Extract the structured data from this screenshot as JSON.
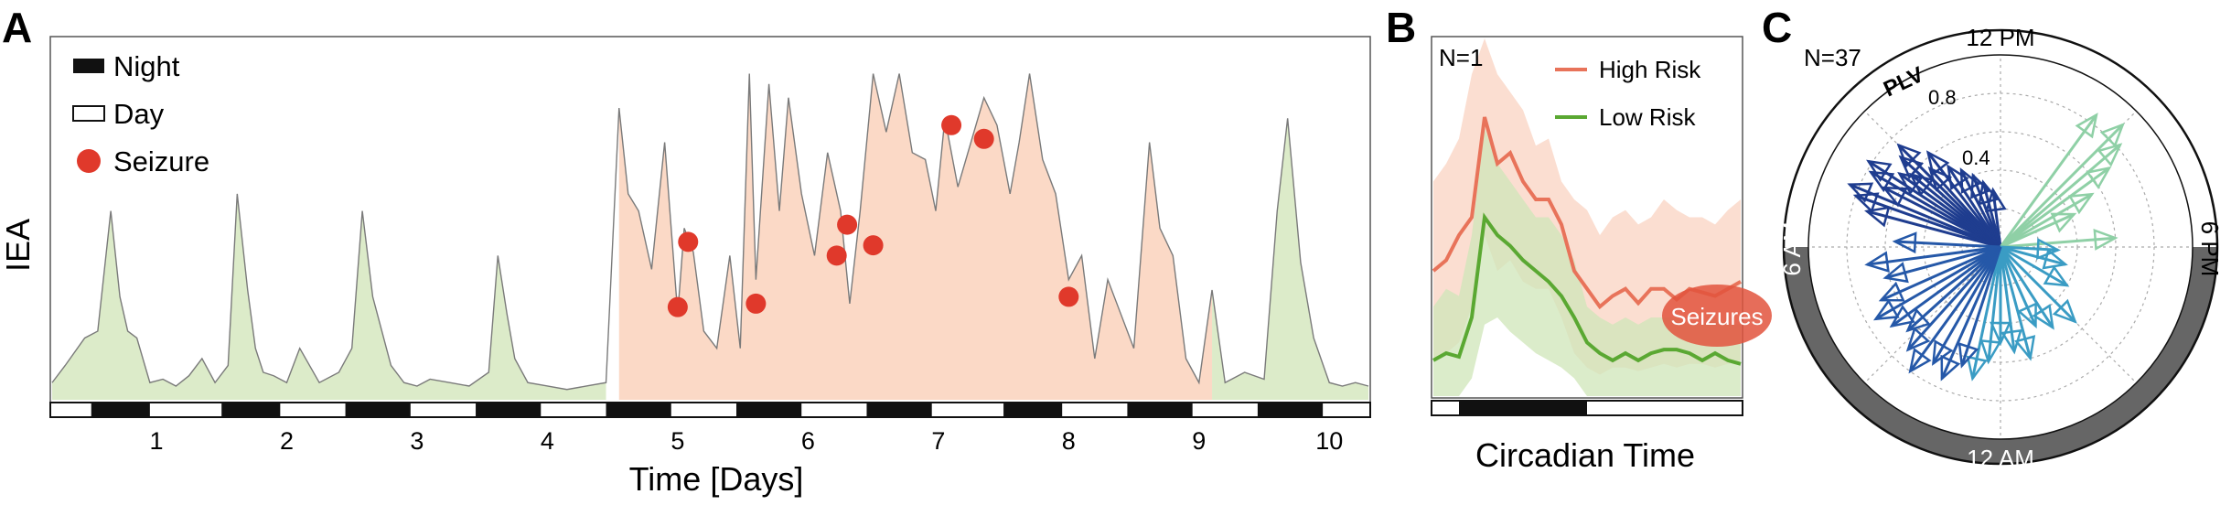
{
  "panels": {
    "A": {
      "letter": "A",
      "ylabel": "IEA",
      "xlabel": "Time [Days]",
      "legend": {
        "night": "Night",
        "day": "Day",
        "seizure": "Seizure"
      },
      "colors": {
        "low": "#dcebc9",
        "high": "#fbd9c6",
        "line": "#7a7a7a",
        "seizure": "#e0392b",
        "night": "#111111",
        "day": "#ffffff"
      }
    },
    "B": {
      "letter": "B",
      "n_label": "N=1",
      "xlabel": "Circadian Time",
      "legend": {
        "high": "High Risk",
        "low": "Low Risk"
      },
      "seizure_label": "Seizures",
      "colors": {
        "high_line": "#e8735a",
        "high_band": "#f9d3c1",
        "low_line": "#5aa832",
        "low_band": "#cfe6b8",
        "seizure_blob": "#e2533d"
      }
    },
    "C": {
      "letter": "C",
      "n_label": "N=37",
      "plv_label": "PLV",
      "ring_labels": {
        "top": "12 PM",
        "right": "6 PM",
        "bottom": "12 AM",
        "left": "6 AM"
      },
      "radial_ticks": [
        "0.4",
        "0.8"
      ],
      "colors": {
        "ring_dark": "#666666",
        "night_arrows": "#1f3d8f",
        "evening_arrows": "#8fd0a6",
        "midnight_arrows": "#2b7fb8"
      }
    }
  },
  "chart_data": [
    {
      "panel": "A",
      "type": "area",
      "title": "",
      "xlabel": "Time [Days]",
      "ylabel": "IEA",
      "xlim": [
        0.2,
        10.3
      ],
      "ylim": [
        0,
        1
      ],
      "xticks": [
        "1",
        "2",
        "3",
        "4",
        "5",
        "6",
        "7",
        "8",
        "9",
        "10"
      ],
      "grid": false,
      "legend_position": "top-left",
      "series": [
        {
          "name": "IEA",
          "x": [
            0.2,
            0.3,
            0.45,
            0.55,
            0.65,
            0.72,
            0.78,
            0.85,
            0.95,
            1.05,
            1.15,
            1.25,
            1.35,
            1.45,
            1.55,
            1.62,
            1.7,
            1.76,
            1.82,
            1.9,
            2.0,
            2.1,
            2.25,
            2.4,
            2.5,
            2.58,
            2.66,
            2.73,
            2.8,
            2.9,
            3.0,
            3.1,
            3.25,
            3.4,
            3.55,
            3.62,
            3.69,
            3.75,
            3.85,
            4.0,
            4.15,
            4.3,
            4.45,
            4.55,
            4.62,
            4.7,
            4.8,
            4.9,
            5.0,
            5.05,
            5.12,
            5.2,
            5.3,
            5.4,
            5.48,
            5.55,
            5.6,
            5.7,
            5.78,
            5.85,
            5.95,
            6.05,
            6.15,
            6.25,
            6.32,
            6.4,
            6.5,
            6.6,
            6.7,
            6.8,
            6.9,
            6.98,
            7.05,
            7.15,
            7.25,
            7.35,
            7.45,
            7.55,
            7.62,
            7.7,
            7.8,
            7.9,
            8.0,
            8.1,
            8.2,
            8.3,
            8.4,
            8.5,
            8.62,
            8.7,
            8.8,
            8.9,
            9.0,
            9.1,
            9.2,
            9.35,
            9.5,
            9.6,
            9.68,
            9.78,
            9.88,
            10.0,
            10.1,
            10.2,
            10.3
          ],
          "y": [
            0.05,
            0.1,
            0.18,
            0.2,
            0.55,
            0.3,
            0.2,
            0.18,
            0.05,
            0.06,
            0.04,
            0.07,
            0.12,
            0.05,
            0.1,
            0.6,
            0.32,
            0.15,
            0.08,
            0.07,
            0.05,
            0.15,
            0.05,
            0.08,
            0.15,
            0.55,
            0.3,
            0.2,
            0.1,
            0.05,
            0.04,
            0.06,
            0.05,
            0.04,
            0.08,
            0.42,
            0.25,
            0.12,
            0.05,
            0.04,
            0.03,
            0.04,
            0.05,
            0.85,
            0.6,
            0.55,
            0.38,
            0.75,
            0.25,
            0.5,
            0.43,
            0.2,
            0.15,
            0.42,
            0.15,
            0.95,
            0.35,
            0.92,
            0.55,
            0.88,
            0.6,
            0.42,
            0.72,
            0.55,
            0.28,
            0.55,
            0.95,
            0.78,
            0.95,
            0.72,
            0.7,
            0.55,
            0.82,
            0.62,
            0.75,
            0.88,
            0.8,
            0.6,
            0.75,
            0.95,
            0.7,
            0.6,
            0.35,
            0.42,
            0.12,
            0.35,
            0.25,
            0.15,
            0.75,
            0.5,
            0.42,
            0.12,
            0.05,
            0.32,
            0.05,
            0.08,
            0.06,
            0.55,
            0.82,
            0.4,
            0.18,
            0.05,
            0.04,
            0.05,
            0.04
          ]
        }
      ],
      "high_risk_interval": [
        4.5,
        9.1
      ],
      "seizures": {
        "x": [
          5.0,
          5.08,
          5.6,
          6.22,
          6.3,
          6.5,
          7.1,
          7.35,
          8.0
        ],
        "y": [
          0.27,
          0.46,
          0.28,
          0.42,
          0.51,
          0.45,
          0.8,
          0.76,
          0.3
        ]
      },
      "day_night_bar": {
        "night_intervals": [
          [
            0.5,
            0.95
          ],
          [
            1.5,
            1.95
          ],
          [
            2.45,
            2.95
          ],
          [
            3.45,
            3.95
          ],
          [
            4.45,
            4.95
          ],
          [
            5.45,
            5.95
          ],
          [
            6.45,
            6.95
          ],
          [
            7.5,
            7.95
          ],
          [
            8.45,
            8.95
          ],
          [
            9.45,
            9.95
          ]
        ]
      }
    },
    {
      "panel": "B",
      "type": "line",
      "title": "",
      "xlabel": "Circadian Time",
      "ylabel": "",
      "xlim": [
        0,
        24
      ],
      "ylim": [
        0,
        1
      ],
      "legend_position": "top-right",
      "series": [
        {
          "name": "High Risk",
          "x": [
            0,
            1,
            2,
            3,
            4,
            5,
            6,
            7,
            8,
            9,
            10,
            11,
            12,
            13,
            14,
            15,
            16,
            17,
            18,
            19,
            20,
            21,
            22,
            23,
            24
          ],
          "y": [
            0.35,
            0.38,
            0.45,
            0.5,
            0.78,
            0.65,
            0.68,
            0.6,
            0.55,
            0.55,
            0.48,
            0.35,
            0.3,
            0.25,
            0.28,
            0.3,
            0.26,
            0.3,
            0.3,
            0.27,
            0.3,
            0.29,
            0.28,
            0.3,
            0.32
          ],
          "upper": [
            0.6,
            0.65,
            0.72,
            0.9,
            1.0,
            0.9,
            0.85,
            0.8,
            0.7,
            0.72,
            0.6,
            0.55,
            0.52,
            0.45,
            0.5,
            0.52,
            0.48,
            0.5,
            0.55,
            0.52,
            0.5,
            0.5,
            0.48,
            0.52,
            0.55
          ],
          "lower": [
            0.1,
            0.12,
            0.15,
            0.25,
            0.45,
            0.35,
            0.38,
            0.32,
            0.3,
            0.3,
            0.22,
            0.12,
            0.08,
            0.06,
            0.08,
            0.08,
            0.07,
            0.08,
            0.09,
            0.08,
            0.09,
            0.09,
            0.08,
            0.09,
            0.1
          ]
        },
        {
          "name": "Low Risk",
          "x": [
            0,
            1,
            2,
            3,
            4,
            5,
            6,
            7,
            8,
            9,
            10,
            11,
            12,
            13,
            14,
            15,
            16,
            17,
            18,
            19,
            20,
            21,
            22,
            23,
            24
          ],
          "y": [
            0.1,
            0.12,
            0.11,
            0.22,
            0.5,
            0.45,
            0.42,
            0.38,
            0.35,
            0.32,
            0.28,
            0.22,
            0.15,
            0.12,
            0.1,
            0.12,
            0.1,
            0.12,
            0.13,
            0.13,
            0.12,
            0.1,
            0.12,
            0.1,
            0.09
          ],
          "upper": [
            0.25,
            0.3,
            0.28,
            0.45,
            0.75,
            0.65,
            0.6,
            0.55,
            0.5,
            0.5,
            0.45,
            0.38,
            0.25,
            0.22,
            0.2,
            0.22,
            0.2,
            0.22,
            0.22,
            0.22,
            0.2,
            0.2,
            0.22,
            0.2,
            0.2
          ],
          "lower": [
            0.0,
            0.0,
            0.0,
            0.05,
            0.2,
            0.22,
            0.18,
            0.15,
            0.12,
            0.1,
            0.08,
            0.05,
            0.0,
            0.0,
            0.0,
            0.0,
            0.0,
            0.0,
            0.0,
            0.0,
            0.0,
            0.0,
            0.0,
            0.0,
            0.0
          ]
        }
      ],
      "day_night_bar": {
        "night_interval": [
          2,
          12
        ]
      }
    },
    {
      "panel": "C",
      "type": "scatter",
      "title": "",
      "projection": "polar",
      "rlim": [
        0,
        1.0
      ],
      "rticks": [
        0.4,
        0.8
      ],
      "series": [
        {
          "name": "",
          "angle_hours": [
            7.0,
            7.3,
            7.5,
            7.8,
            8.0,
            8.2,
            8.4,
            8.6,
            8.8,
            9.0,
            9.2,
            9.5,
            9.8,
            10.2,
            10.6,
            11.0,
            11.5
          ],
          "plv": [
            0.72,
            0.8,
            0.85,
            0.68,
            0.78,
            0.82,
            0.65,
            0.6,
            0.7,
            0.75,
            0.55,
            0.62,
            0.5,
            0.45,
            0.4,
            0.35,
            0.3
          ]
        },
        {
          "name": "",
          "angle_hours": [
            14.4,
            15.0,
            15.3,
            15.6,
            16.0,
            16.4,
            17.7
          ],
          "plv": [
            0.85,
            0.9,
            0.82,
            0.7,
            0.55,
            0.42,
            0.6
          ]
        },
        {
          "name": "",
          "angle_hours": [
            18.2,
            19.0,
            20.0,
            21.0,
            21.8,
            22.4,
            23.0,
            23.5,
            0.0,
            0.4,
            0.8,
            1.2,
            1.6,
            2.0,
            2.4,
            2.8,
            3.2,
            3.6,
            4.0,
            4.4,
            5.0,
            5.5,
            6.2
          ],
          "plv": [
            0.3,
            0.35,
            0.4,
            0.55,
            0.5,
            0.45,
            0.6,
            0.55,
            0.5,
            0.6,
            0.7,
            0.65,
            0.75,
            0.7,
            0.8,
            0.72,
            0.65,
            0.7,
            0.75,
            0.68,
            0.62,
            0.7,
            0.55
          ]
        }
      ],
      "ring_night_interval_hours": [
        18.0,
        6.0
      ]
    }
  ]
}
